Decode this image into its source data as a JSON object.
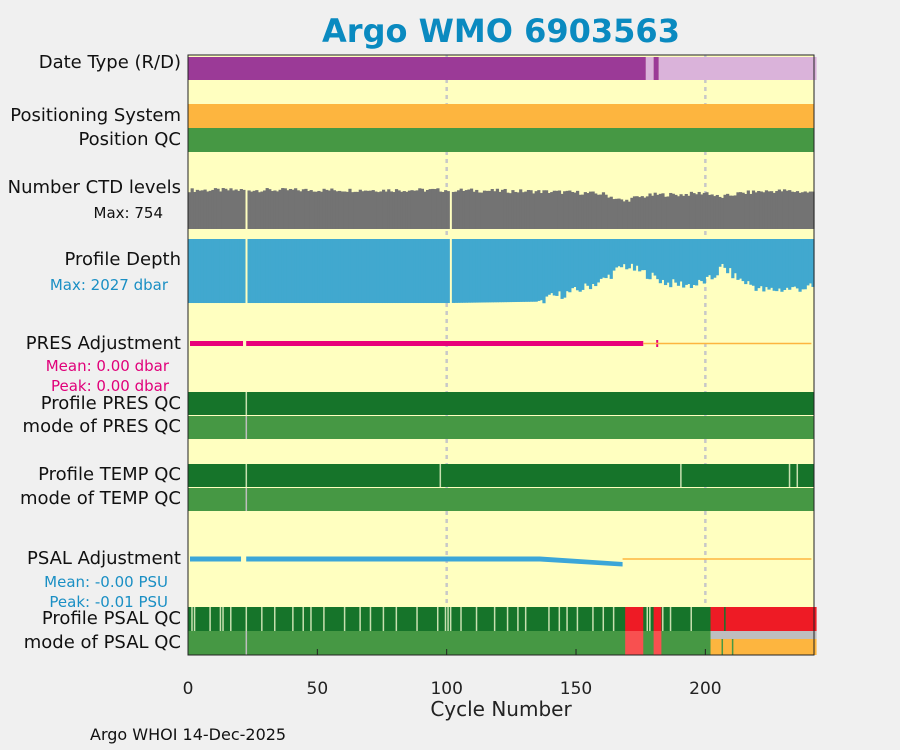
{
  "title": "Argo WMO 6903563",
  "footer": "Argo WHOI 14-Dec-2025",
  "colors": {
    "panel_bg": "#ffffc0",
    "date_type_r": "#9b3a97",
    "date_type_d": "#dab3da",
    "positioning": "#fdb53f",
    "qc_good": "#469844",
    "qc_good_dark": "#16742a",
    "qc_light": "#c8e0b0",
    "qc_bad": "#ee1b25",
    "qc_bad_light": "#f85050",
    "qc_missing": "#bebebe",
    "qc_probably_bad": "#fdb53f",
    "ctd": "#737373",
    "depth": "#41a8cf",
    "pres_adj": "#e8007b",
    "psal_adj": "#3ba6d8",
    "grid": "#c8c8c8"
  },
  "rows": {
    "date_type": "Date Type (R/D)",
    "positioning_system": "Positioning System",
    "position_qc": "Position QC",
    "ctd_levels": "Number CTD levels",
    "ctd_max": "Max: 754",
    "profile_depth": "Profile Depth",
    "depth_max": "Max: 2027 dbar",
    "pres_adjustment": "PRES Adjustment",
    "pres_mean": "Mean: 0.00 dbar",
    "pres_peak": "Peak: 0.00 dbar",
    "profile_pres_qc": "Profile PRES QC",
    "mode_pres_qc": "mode of PRES QC",
    "profile_temp_qc": "Profile TEMP QC",
    "mode_temp_qc": "mode of TEMP QC",
    "psal_adjustment": "PSAL Adjustment",
    "psal_mean": "Mean: -0.00 PSU",
    "psal_peak": "Peak: -0.01 PSU",
    "profile_psal_qc": "Profile PSAL QC",
    "mode_psal_qc": "mode of PSAL QC"
  },
  "chart_data": {
    "type": "bar",
    "title": "Argo WMO 6903563",
    "xlabel": "Cycle Number",
    "xlim": [
      0,
      242
    ],
    "xticks": [
      0,
      50,
      100,
      150,
      200
    ],
    "grid": "vertical dotted at 100 and 200",
    "date_type": [
      {
        "from": 0,
        "to": 176,
        "type": "R"
      },
      {
        "from": 177,
        "to": 179,
        "type": "D"
      },
      {
        "from": 180,
        "to": 181,
        "type": "R"
      },
      {
        "from": 182,
        "to": 242,
        "type": "D"
      }
    ],
    "ctd_levels_max": 754,
    "profile_depth_max_dbar": 2027,
    "missing_cycles": [
      22,
      101
    ],
    "ctd_level_profile": [
      [
        0,
        0.77
      ],
      [
        22,
        0.77
      ],
      [
        100,
        0.77
      ],
      [
        136,
        0.73
      ],
      [
        150,
        0.7
      ],
      [
        160,
        0.66
      ],
      [
        168,
        0.45
      ],
      [
        172,
        0.55
      ],
      [
        180,
        0.64
      ],
      [
        190,
        0.64
      ],
      [
        200,
        0.7
      ],
      [
        205,
        0.56
      ],
      [
        212,
        0.67
      ],
      [
        220,
        0.73
      ],
      [
        230,
        0.75
      ],
      [
        242,
        0.7
      ]
    ],
    "profile_depth_profile": [
      [
        0,
        0.03
      ],
      [
        100,
        0.03
      ],
      [
        134,
        0.05
      ],
      [
        140,
        0.12
      ],
      [
        150,
        0.22
      ],
      [
        160,
        0.38
      ],
      [
        168,
        0.6
      ],
      [
        175,
        0.5
      ],
      [
        185,
        0.33
      ],
      [
        195,
        0.3
      ],
      [
        202,
        0.4
      ],
      [
        206,
        0.58
      ],
      [
        212,
        0.4
      ],
      [
        222,
        0.22
      ],
      [
        242,
        0.27
      ]
    ],
    "pres_adjustment": {
      "mean_dbar": 0.0,
      "peak_dbar": 0.0,
      "adjusted_to_cycle": 176,
      "spike_cycle": 181,
      "last_cycle": 241
    },
    "psal_adjustment": {
      "mean_psu": -0.0,
      "peak_psu": -0.01,
      "adjusted_to_cycle": 168,
      "last_cycle": 241
    },
    "psal_qc_segments": [
      {
        "from": 169,
        "to": 175,
        "qc": "bad"
      },
      {
        "from": 180,
        "to": 182,
        "qc": "bad"
      },
      {
        "from": 202,
        "to": 242,
        "qc": "bad"
      }
    ],
    "psal_mode_segments": [
      {
        "from": 169,
        "to": 175,
        "qc": "bad"
      },
      {
        "from": 180,
        "to": 182,
        "qc": "bad"
      },
      {
        "from": 202,
        "to": 242,
        "qc": "missing_over_probably_bad"
      }
    ]
  }
}
